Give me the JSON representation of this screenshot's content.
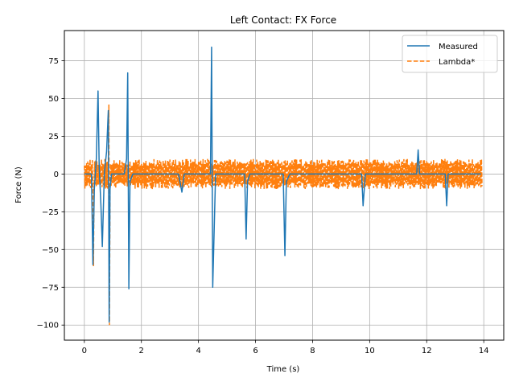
{
  "chart_data": {
    "type": "line",
    "title": "Left Contact: FX Force",
    "xlabel": "Time (s)",
    "ylabel": "Force (N)",
    "xlim": [
      -0.7,
      14.7
    ],
    "ylim": [
      -110,
      95
    ],
    "xticks": [
      0,
      2,
      4,
      6,
      8,
      10,
      12,
      14
    ],
    "yticks": [
      -100,
      -75,
      -50,
      -25,
      0,
      25,
      50,
      75
    ],
    "xtick_labels": [
      "0",
      "2",
      "4",
      "6",
      "8",
      "10",
      "12",
      "14"
    ],
    "ytick_labels": [
      "−100",
      "−75",
      "−50",
      "−25",
      "0",
      "25",
      "50",
      "75"
    ],
    "grid": true,
    "legend_position": "top-right",
    "series": [
      {
        "name": "Measured",
        "color": "#1f77b4",
        "style": "solid",
        "x": [
          0.0,
          0.25,
          0.3,
          0.35,
          0.42,
          0.48,
          0.52,
          0.58,
          0.63,
          0.7,
          0.78,
          0.84,
          0.87,
          0.9,
          0.95,
          1.1,
          1.4,
          1.48,
          1.52,
          1.56,
          1.6,
          1.7,
          2.0,
          2.5,
          3.0,
          3.3,
          3.42,
          3.5,
          3.8,
          4.2,
          4.35,
          4.42,
          4.46,
          4.5,
          4.6,
          5.0,
          5.5,
          5.62,
          5.67,
          5.72,
          5.8,
          6.5,
          6.9,
          6.97,
          7.03,
          7.08,
          7.2,
          8.0,
          9.0,
          9.6,
          9.72,
          9.77,
          9.85,
          10.5,
          11.0,
          11.5,
          11.65,
          11.7,
          11.75,
          11.85,
          12.5,
          12.65,
          12.7,
          12.75,
          13.0,
          13.5,
          13.9
        ],
        "y": [
          0,
          0,
          -60,
          -10,
          10,
          55,
          5,
          -20,
          -48,
          0,
          15,
          42,
          -98,
          -10,
          0,
          0,
          0,
          10,
          67,
          -76,
          -5,
          0,
          0,
          0,
          0,
          0,
          -12,
          0,
          0,
          0,
          0,
          0,
          84,
          -75,
          0,
          0,
          0,
          0,
          -43,
          -5,
          0,
          0,
          0,
          0,
          -54,
          -5,
          0,
          0,
          0,
          0,
          0,
          -21,
          0,
          0,
          0,
          0,
          0,
          16,
          0,
          0,
          0,
          0,
          -21,
          0,
          0,
          0,
          0
        ]
      },
      {
        "name": "Lambda*",
        "color": "#ff7f0e",
        "style": "dashed",
        "oscillation_amplitude": 10,
        "x_start": 0.0,
        "x_end": 13.95,
        "spikes": [
          {
            "x": 0.32,
            "y": -61
          },
          {
            "x": 0.86,
            "y": 46
          },
          {
            "x": 0.88,
            "y": -100
          }
        ]
      }
    ]
  }
}
